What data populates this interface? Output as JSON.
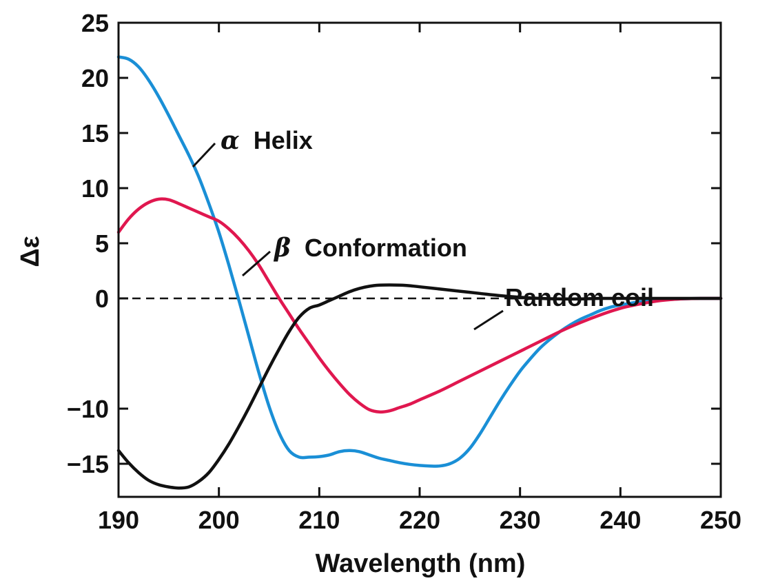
{
  "chart_data": {
    "type": "line",
    "title": "",
    "xlabel": "Wavelength (nm)",
    "ylabel": "Δε",
    "xlim": [
      190,
      250
    ],
    "ylim": [
      -18,
      25
    ],
    "xticks": [
      190,
      200,
      210,
      220,
      230,
      240,
      250
    ],
    "yticks": [
      25,
      20,
      15,
      10,
      5,
      0,
      -10,
      -15
    ],
    "ytick_labels": [
      "25",
      "20",
      "15",
      "10",
      "5",
      "0",
      "−10",
      "−15"
    ],
    "reference_line": {
      "y": 0,
      "style": "dashed"
    },
    "series": [
      {
        "name": "α Helix",
        "greek": "α",
        "label_text": "Helix",
        "color": "#1a8fd6",
        "points": [
          [
            190,
            21.9
          ],
          [
            191,
            21.7
          ],
          [
            192,
            21.0
          ],
          [
            193,
            19.8
          ],
          [
            194,
            18.3
          ],
          [
            195,
            16.6
          ],
          [
            196,
            14.8
          ],
          [
            197,
            13.0
          ],
          [
            198,
            11.0
          ],
          [
            199,
            8.6
          ],
          [
            200,
            6.0
          ],
          [
            201,
            3.0
          ],
          [
            202,
            -0.2
          ],
          [
            203,
            -3.5
          ],
          [
            204,
            -6.8
          ],
          [
            205,
            -9.8
          ],
          [
            206,
            -12.2
          ],
          [
            207,
            -13.8
          ],
          [
            208,
            -14.4
          ],
          [
            209,
            -14.4
          ],
          [
            210,
            -14.35
          ],
          [
            211,
            -14.2
          ],
          [
            212,
            -13.9
          ],
          [
            213,
            -13.8
          ],
          [
            214,
            -13.9
          ],
          [
            215,
            -14.2
          ],
          [
            216,
            -14.5
          ],
          [
            217,
            -14.7
          ],
          [
            218,
            -14.9
          ],
          [
            219,
            -15.05
          ],
          [
            220,
            -15.15
          ],
          [
            221,
            -15.2
          ],
          [
            222,
            -15.2
          ],
          [
            223,
            -15.0
          ],
          [
            224,
            -14.5
          ],
          [
            225,
            -13.6
          ],
          [
            226,
            -12.3
          ],
          [
            227,
            -10.8
          ],
          [
            228,
            -9.3
          ],
          [
            229,
            -7.9
          ],
          [
            230,
            -6.6
          ],
          [
            231,
            -5.5
          ],
          [
            232,
            -4.5
          ],
          [
            233,
            -3.7
          ],
          [
            234,
            -3.0
          ],
          [
            235,
            -2.4
          ],
          [
            236,
            -1.9
          ],
          [
            237,
            -1.5
          ],
          [
            238,
            -1.1
          ],
          [
            239,
            -0.8
          ],
          [
            240,
            -0.6
          ],
          [
            242,
            -0.3
          ],
          [
            244,
            -0.15
          ],
          [
            246,
            -0.05
          ],
          [
            248,
            0.0
          ],
          [
            250,
            0.0
          ]
        ]
      },
      {
        "name": "β Conformation",
        "greek": "β",
        "label_text": "Conformation",
        "color": "#e0174f",
        "points": [
          [
            190,
            6.0
          ],
          [
            191,
            7.2
          ],
          [
            192,
            8.1
          ],
          [
            193,
            8.7
          ],
          [
            194,
            9.0
          ],
          [
            195,
            8.95
          ],
          [
            196,
            8.6
          ],
          [
            197,
            8.2
          ],
          [
            198,
            7.8
          ],
          [
            199,
            7.4
          ],
          [
            200,
            7.0
          ],
          [
            201,
            6.3
          ],
          [
            202,
            5.4
          ],
          [
            203,
            4.3
          ],
          [
            204,
            3.0
          ],
          [
            205,
            1.5
          ],
          [
            206,
            0.0
          ],
          [
            207,
            -1.4
          ],
          [
            208,
            -2.8
          ],
          [
            209,
            -4.1
          ],
          [
            210,
            -5.4
          ],
          [
            211,
            -6.6
          ],
          [
            212,
            -7.7
          ],
          [
            213,
            -8.7
          ],
          [
            214,
            -9.5
          ],
          [
            215,
            -10.1
          ],
          [
            216,
            -10.3
          ],
          [
            217,
            -10.2
          ],
          [
            218,
            -9.9
          ],
          [
            219,
            -9.6
          ],
          [
            220,
            -9.2
          ],
          [
            222,
            -8.4
          ],
          [
            224,
            -7.5
          ],
          [
            226,
            -6.6
          ],
          [
            228,
            -5.7
          ],
          [
            230,
            -4.8
          ],
          [
            232,
            -3.9
          ],
          [
            234,
            -3.0
          ],
          [
            236,
            -2.2
          ],
          [
            238,
            -1.5
          ],
          [
            240,
            -0.9
          ],
          [
            242,
            -0.5
          ],
          [
            244,
            -0.2
          ],
          [
            246,
            -0.05
          ],
          [
            248,
            0.0
          ],
          [
            250,
            0.0
          ]
        ]
      },
      {
        "name": "Random coil",
        "greek": "",
        "label_text": "Random coil",
        "color": "#111111",
        "points": [
          [
            190,
            -13.8
          ],
          [
            191,
            -14.9
          ],
          [
            192,
            -15.8
          ],
          [
            193,
            -16.5
          ],
          [
            194,
            -16.9
          ],
          [
            195,
            -17.1
          ],
          [
            196,
            -17.2
          ],
          [
            197,
            -17.1
          ],
          [
            198,
            -16.6
          ],
          [
            199,
            -15.8
          ],
          [
            200,
            -14.6
          ],
          [
            201,
            -13.2
          ],
          [
            202,
            -11.6
          ],
          [
            203,
            -9.9
          ],
          [
            204,
            -8.1
          ],
          [
            205,
            -6.3
          ],
          [
            206,
            -4.6
          ],
          [
            207,
            -3.0
          ],
          [
            208,
            -1.7
          ],
          [
            209,
            -0.9
          ],
          [
            210,
            -0.6
          ],
          [
            211,
            -0.2
          ],
          [
            212,
            0.2
          ],
          [
            213,
            0.6
          ],
          [
            214,
            0.9
          ],
          [
            215,
            1.1
          ],
          [
            216,
            1.2
          ],
          [
            217,
            1.22
          ],
          [
            218,
            1.2
          ],
          [
            219,
            1.15
          ],
          [
            220,
            1.05
          ],
          [
            222,
            0.85
          ],
          [
            224,
            0.65
          ],
          [
            226,
            0.45
          ],
          [
            228,
            0.25
          ],
          [
            230,
            0.1
          ],
          [
            232,
            0.0
          ],
          [
            234,
            -0.05
          ],
          [
            236,
            -0.05
          ],
          [
            238,
            0.0
          ],
          [
            240,
            0.0
          ],
          [
            245,
            0.0
          ],
          [
            250,
            0.0
          ]
        ]
      }
    ]
  }
}
